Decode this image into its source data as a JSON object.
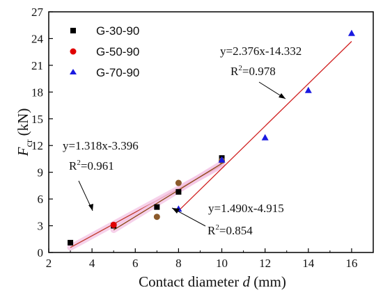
{
  "chart_data": {
    "type": "scatter",
    "xlabel": "Contact diameter",
    "xlabel_var": "d",
    "xlabel_unit": "(mm)",
    "ylabel_var": "F",
    "ylabel_sub": "cr",
    "ylabel_unit": "(kN)",
    "xlim": [
      2,
      17
    ],
    "ylim": [
      0,
      27
    ],
    "xticks": [
      2,
      4,
      6,
      8,
      10,
      12,
      14,
      16
    ],
    "yticks": [
      0,
      3,
      6,
      9,
      12,
      15,
      18,
      21,
      24,
      27
    ],
    "legend_position": "top-left",
    "series": [
      {
        "name": "G-30-90",
        "marker": "square",
        "color": "#000000",
        "points": [
          [
            3,
            1.1
          ],
          [
            5,
            3.0
          ],
          [
            7,
            5.1
          ],
          [
            8,
            6.8
          ],
          [
            10,
            10.6
          ]
        ]
      },
      {
        "name": "G-50-90",
        "marker": "circle",
        "color": "#e00000",
        "points": [
          [
            5,
            3.1
          ],
          [
            7,
            4.0
          ],
          [
            8,
            7.8
          ],
          [
            10,
            10.3
          ]
        ]
      },
      {
        "name": "G-70-90",
        "marker": "triangle",
        "color": "#1a1ae0",
        "points": [
          [
            8,
            4.9
          ],
          [
            10,
            10.4
          ],
          [
            12,
            12.9
          ],
          [
            14,
            18.2
          ],
          [
            16,
            24.6
          ]
        ]
      }
    ],
    "fit_lines": [
      {
        "slope": 1.318,
        "intercept": -3.396,
        "x_range": [
          3,
          10
        ],
        "color": "#c0392b"
      },
      {
        "slope": 1.49,
        "intercept": -4.915,
        "x_range": [
          5,
          10
        ],
        "color": "#8b4513"
      },
      {
        "slope": 2.376,
        "intercept": -14.332,
        "x_range": [
          8,
          16
        ],
        "color": "#d02020"
      }
    ],
    "annotations": [
      {
        "id": "eq1",
        "text": "y=1.318x-3.396",
        "r2": "0.961"
      },
      {
        "id": "eq2",
        "text": "y=1.490x-4.915",
        "r2": "0.854"
      },
      {
        "id": "eq3",
        "text": "y=2.376x-14.332",
        "r2": "0.978"
      }
    ]
  }
}
